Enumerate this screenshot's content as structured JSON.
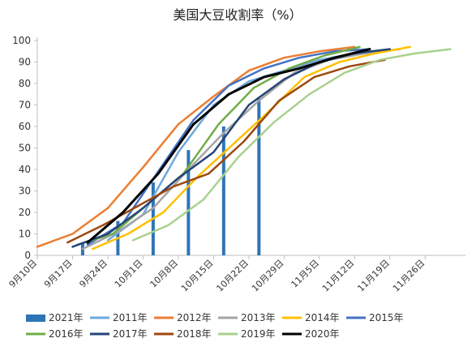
{
  "chart_data": {
    "type": "line",
    "title": "美国大豆收割率（%）",
    "xlabel": "",
    "ylabel": "",
    "ylim": [
      0,
      100
    ],
    "yticks": [
      0,
      10,
      20,
      30,
      40,
      50,
      60,
      70,
      80,
      90,
      100
    ],
    "x_tick_labels": [
      "9月10日",
      "9月17日",
      "9月24日",
      "10月1日",
      "10月8日",
      "10月15日",
      "10月22日",
      "10月29日",
      "11月5日",
      "11月12日",
      "11月19日",
      "11月26日"
    ],
    "grid": false,
    "legend_position": "bottom",
    "bar_series": {
      "name": "2021年",
      "color": "#2e75b6",
      "x": [
        "9月19日",
        "9月26日",
        "10月3日",
        "10月10日",
        "10月17日",
        "10月24日"
      ],
      "values": [
        6,
        16,
        34,
        49,
        60,
        73
      ]
    },
    "series": [
      {
        "name": "2011年",
        "color": "#6fa8dc",
        "x": [
          "9月24日",
          "10月1日",
          "10月8日",
          "10月15日",
          "10月22日",
          "10月29日",
          "11月5日",
          "11月12日",
          "11月19日"
        ],
        "values": [
          7,
          19,
          48,
          70,
          81,
          86,
          91,
          94,
          96
        ]
      },
      {
        "name": "2012年",
        "color": "#ed7d31",
        "x": [
          "9月10日",
          "9月17日",
          "9月24日",
          "10月1日",
          "10月8日",
          "10月15日",
          "10月22日",
          "10月29日",
          "11月5日",
          "11月12日"
        ],
        "values": [
          4,
          10,
          22,
          41,
          61,
          74,
          86,
          92,
          95,
          97
        ]
      },
      {
        "name": "2013年",
        "color": "#a5a5a5",
        "x": [
          "9月19日",
          "9月26日",
          "10月3日",
          "10月10日",
          "10月17日",
          "10月24日",
          "10月31日",
          "11月7日",
          "11月14日",
          "11月21日"
        ],
        "values": [
          3,
          11,
          22,
          40,
          57,
          72,
          85,
          91,
          94,
          96
        ]
      },
      {
        "name": "2014年",
        "color": "#ffc000",
        "x": [
          "9月21日",
          "9月28日",
          "10月5日",
          "10月12日",
          "10月19日",
          "10月26日",
          "11月2日",
          "11月9日",
          "11月16日",
          "11月23日"
        ],
        "values": [
          3,
          10,
          20,
          37,
          52,
          67,
          83,
          90,
          94,
          97
        ]
      },
      {
        "name": "2015年",
        "color": "#4472c4",
        "x": [
          "9月20日",
          "9月27日",
          "10月4日",
          "10月11日",
          "10月18日",
          "10月25日",
          "11月1日",
          "11月8日",
          "11月15日"
        ],
        "values": [
          5,
          15,
          39,
          63,
          79,
          87,
          92,
          95,
          96
        ]
      },
      {
        "name": "2016年",
        "color": "#70ad47",
        "x": [
          "9月18日",
          "9月25日",
          "10月2日",
          "10月9日",
          "10月16日",
          "10月23日",
          "10月30日",
          "11月6日",
          "11月13日"
        ],
        "values": [
          5,
          10,
          24,
          38,
          61,
          78,
          87,
          93,
          97
        ]
      },
      {
        "name": "2017年",
        "color": "#264478",
        "x": [
          "9月17日",
          "9月24日",
          "10月1日",
          "10月8日",
          "10月15日",
          "10月22日",
          "10月29日",
          "11月5日",
          "11月12日",
          "11月19日"
        ],
        "values": [
          4,
          10,
          22,
          36,
          48,
          70,
          82,
          90,
          94,
          96
        ]
      },
      {
        "name": "2018年",
        "color": "#9e480e",
        "x": [
          "9月16日",
          "9月23日",
          "9月30日",
          "10月7日",
          "10月14日",
          "10月21日",
          "10月28日",
          "11月4日",
          "11月11日",
          "11月18日"
        ],
        "values": [
          6,
          14,
          23,
          32,
          38,
          53,
          72,
          83,
          88,
          91
        ]
      },
      {
        "name": "2019年",
        "color": "#a9d18e",
        "x": [
          "9月29日",
          "10月6日",
          "10月13日",
          "10月20日",
          "10月27日",
          "11月3日",
          "11月10日",
          "11月17日",
          "11月24日",
          "12月1日"
        ],
        "values": [
          7,
          14,
          26,
          46,
          62,
          75,
          85,
          91,
          94,
          96
        ]
      },
      {
        "name": "2020年",
        "color": "#000000",
        "x": [
          "9月20日",
          "9月27日",
          "10月4日",
          "10月11日",
          "10月18日",
          "10月25日",
          "11月1日",
          "11月8日",
          "11月15日"
        ],
        "values": [
          6,
          20,
          38,
          61,
          75,
          83,
          87,
          92,
          96
        ]
      }
    ]
  }
}
